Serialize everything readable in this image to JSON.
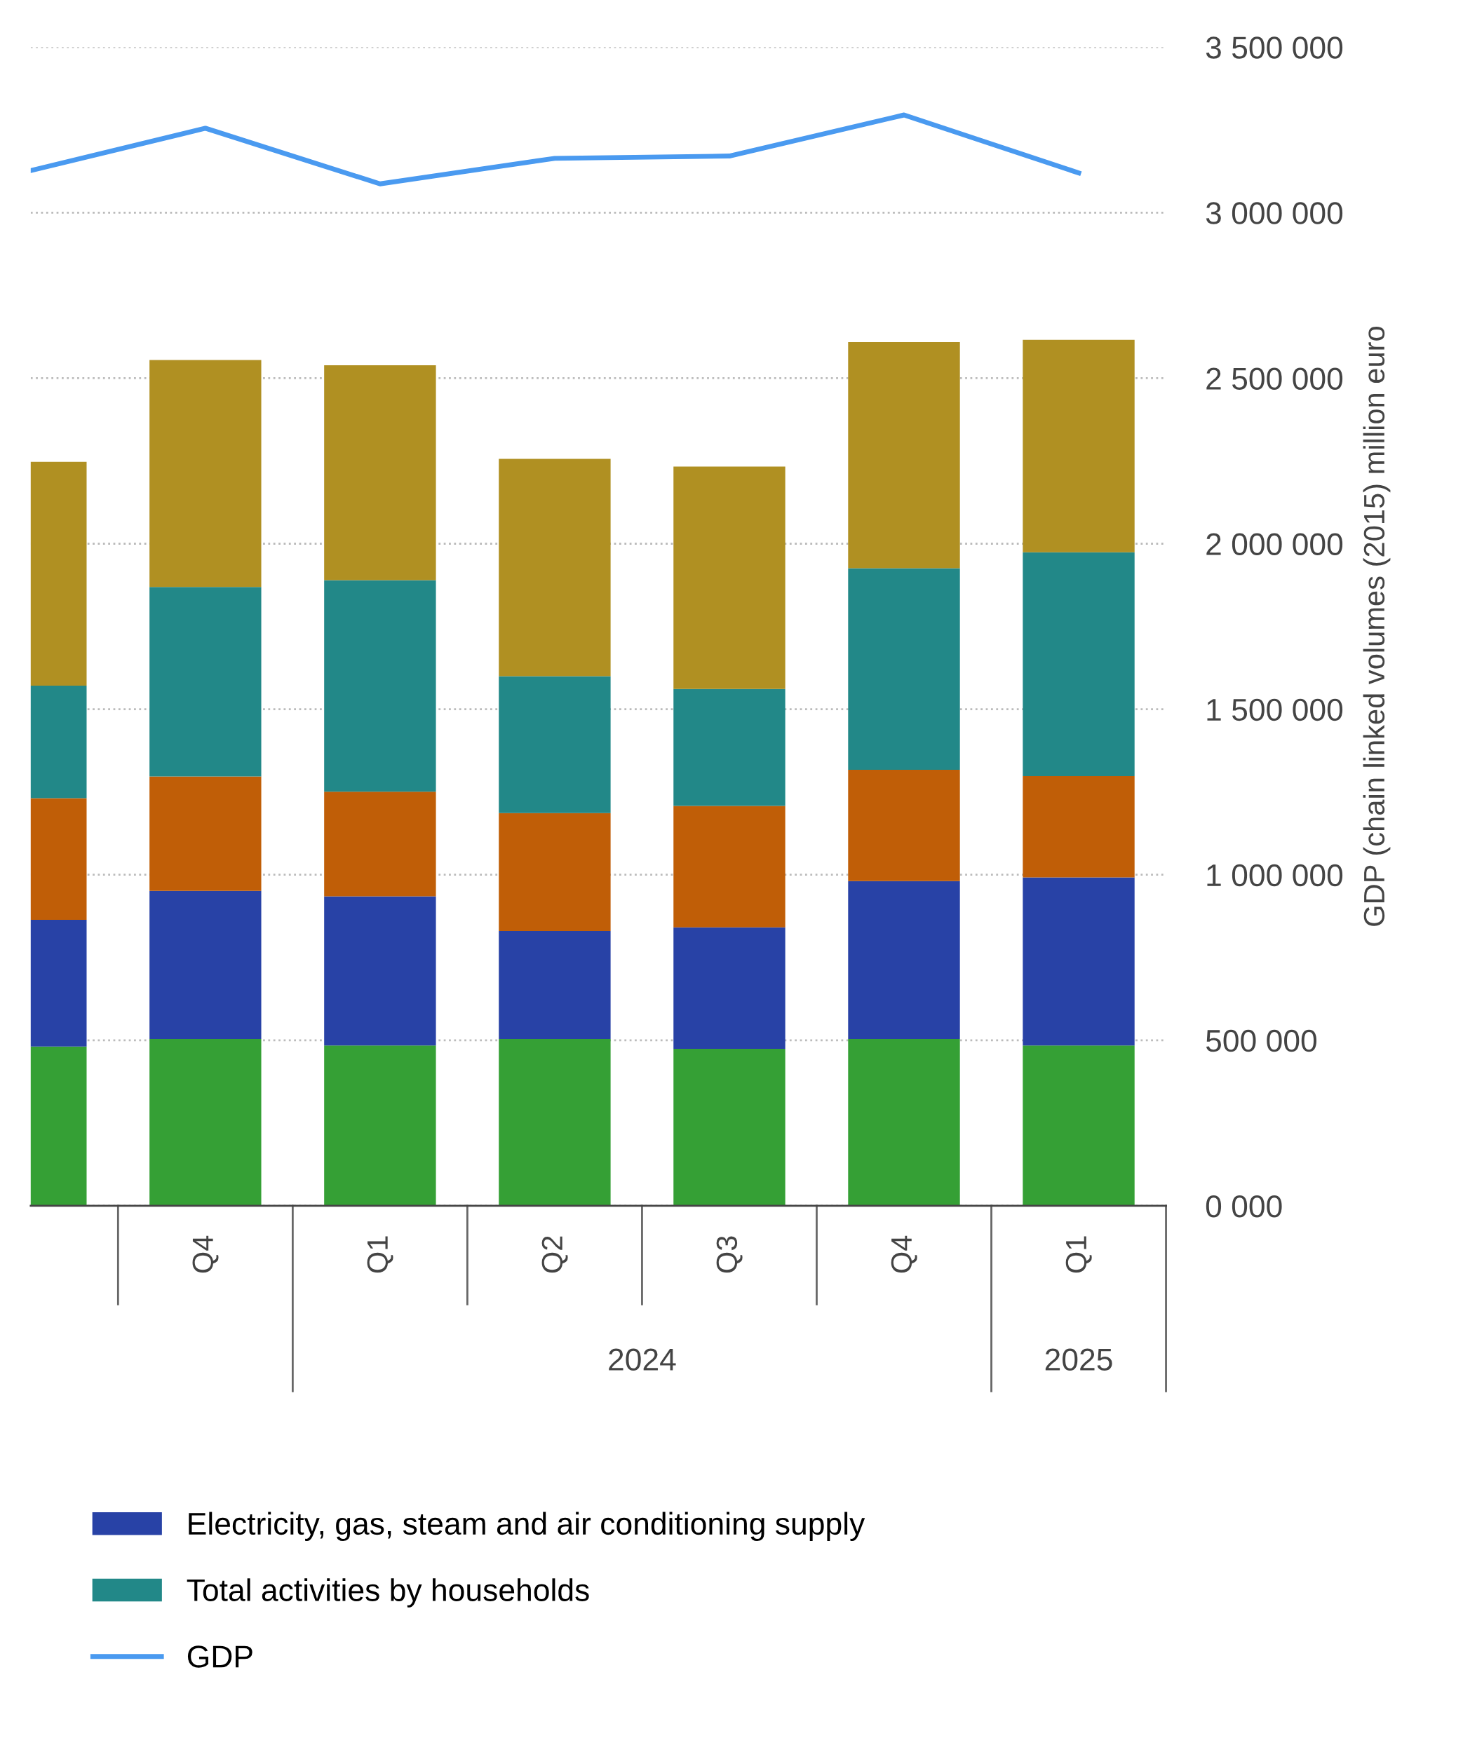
{
  "chart_data": {
    "type": "bar",
    "stacked": true,
    "categories": [
      null,
      "Q4",
      "Q1",
      "Q2",
      "Q3",
      "Q4",
      "Q1"
    ],
    "series": [
      {
        "color": "#35a035",
        "values": [
          481000,
          504000,
          484000,
          504000,
          474000,
          504000,
          484000
        ]
      },
      {
        "name": "Electricity, gas, steam and air conditioning supply",
        "color": "#2842a6",
        "values": [
          383000,
          447000,
          451000,
          326000,
          367000,
          477000,
          508000
        ]
      },
      {
        "color": "#c05e07",
        "values": [
          367000,
          346000,
          316000,
          356000,
          367000,
          336000,
          306000
        ]
      },
      {
        "name": "Total activities by households",
        "color": "#228888",
        "values": [
          340000,
          572000,
          639000,
          414000,
          353000,
          609000,
          676000
        ]
      },
      {
        "color": "#b09022",
        "values": [
          676000,
          686000,
          649000,
          656000,
          672000,
          683000,
          642000
        ]
      },
      {
        "name": "GDP",
        "type": "line",
        "color": "#4a9af0",
        "values": [
          3127000,
          3255000,
          3087000,
          3164000,
          3171000,
          3295000,
          3120000
        ]
      }
    ],
    "ylabel": "GDP (chain linked volumes (2015) million euro",
    "ylim": [
      0,
      3500000
    ],
    "yticks": [
      {
        "value": 0,
        "label": "0 000"
      },
      {
        "value": 500000,
        "label": "500 000"
      },
      {
        "value": 1000000,
        "label": "1 000 000"
      },
      {
        "value": 1500000,
        "label": "1 500 000"
      },
      {
        "value": 2000000,
        "label": "2 000 000"
      },
      {
        "value": 2500000,
        "label": "2 500 000"
      },
      {
        "value": 3000000,
        "label": "3 000 000"
      },
      {
        "value": 3500000,
        "label": "3 500 000"
      }
    ],
    "annotations": [
      "2024",
      "2025"
    ],
    "grid": "y",
    "legend": "bottom",
    "marker": "none",
    "line_style": "solid"
  }
}
